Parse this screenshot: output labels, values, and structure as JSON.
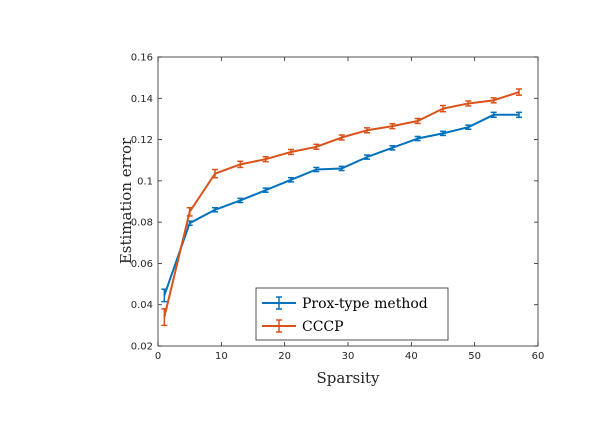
{
  "chart_data": {
    "type": "line",
    "title": "",
    "xlabel": "Sparsity",
    "ylabel": "Estimation error",
    "xlim": [
      0,
      60
    ],
    "ylim": [
      0.02,
      0.16
    ],
    "xticks": [
      0,
      10,
      20,
      30,
      40,
      50,
      60
    ],
    "yticks": [
      0.02,
      0.04,
      0.06,
      0.08,
      0.1,
      0.12,
      0.14,
      0.16
    ],
    "x_tick_labels": [
      "0",
      "10",
      "20",
      "30",
      "40",
      "50",
      "60"
    ],
    "y_tick_labels": [
      "0.02",
      "0.04",
      "0.06",
      "0.08",
      "0.1",
      "0.12",
      "0.14",
      "0.16"
    ],
    "grid": false,
    "error_bars": true,
    "legend_position": "bottom-center",
    "x": [
      1,
      5,
      9,
      13,
      17,
      21,
      25,
      29,
      33,
      37,
      41,
      45,
      49,
      53,
      57
    ],
    "series": [
      {
        "name": "Prox-type method",
        "color": "#0072BD",
        "values": [
          0.0445,
          0.0795,
          0.086,
          0.0905,
          0.0955,
          0.1005,
          0.1055,
          0.106,
          0.1115,
          0.116,
          0.1205,
          0.123,
          0.126,
          0.132,
          0.132
        ],
        "errors": [
          0.003,
          0.001,
          0.001,
          0.001,
          0.001,
          0.001,
          0.001,
          0.001,
          0.001,
          0.001,
          0.001,
          0.001,
          0.001,
          0.0012,
          0.0012
        ]
      },
      {
        "name": "CCCP",
        "color": "#D95319",
        "values": [
          0.034,
          0.085,
          0.1035,
          0.108,
          0.1105,
          0.114,
          0.1165,
          0.121,
          0.1245,
          0.1265,
          0.129,
          0.135,
          0.1375,
          0.139,
          0.143
        ],
        "errors": [
          0.004,
          0.002,
          0.002,
          0.0015,
          0.0012,
          0.0012,
          0.0012,
          0.0012,
          0.0012,
          0.0012,
          0.0012,
          0.0015,
          0.0012,
          0.0012,
          0.0015
        ]
      }
    ]
  }
}
